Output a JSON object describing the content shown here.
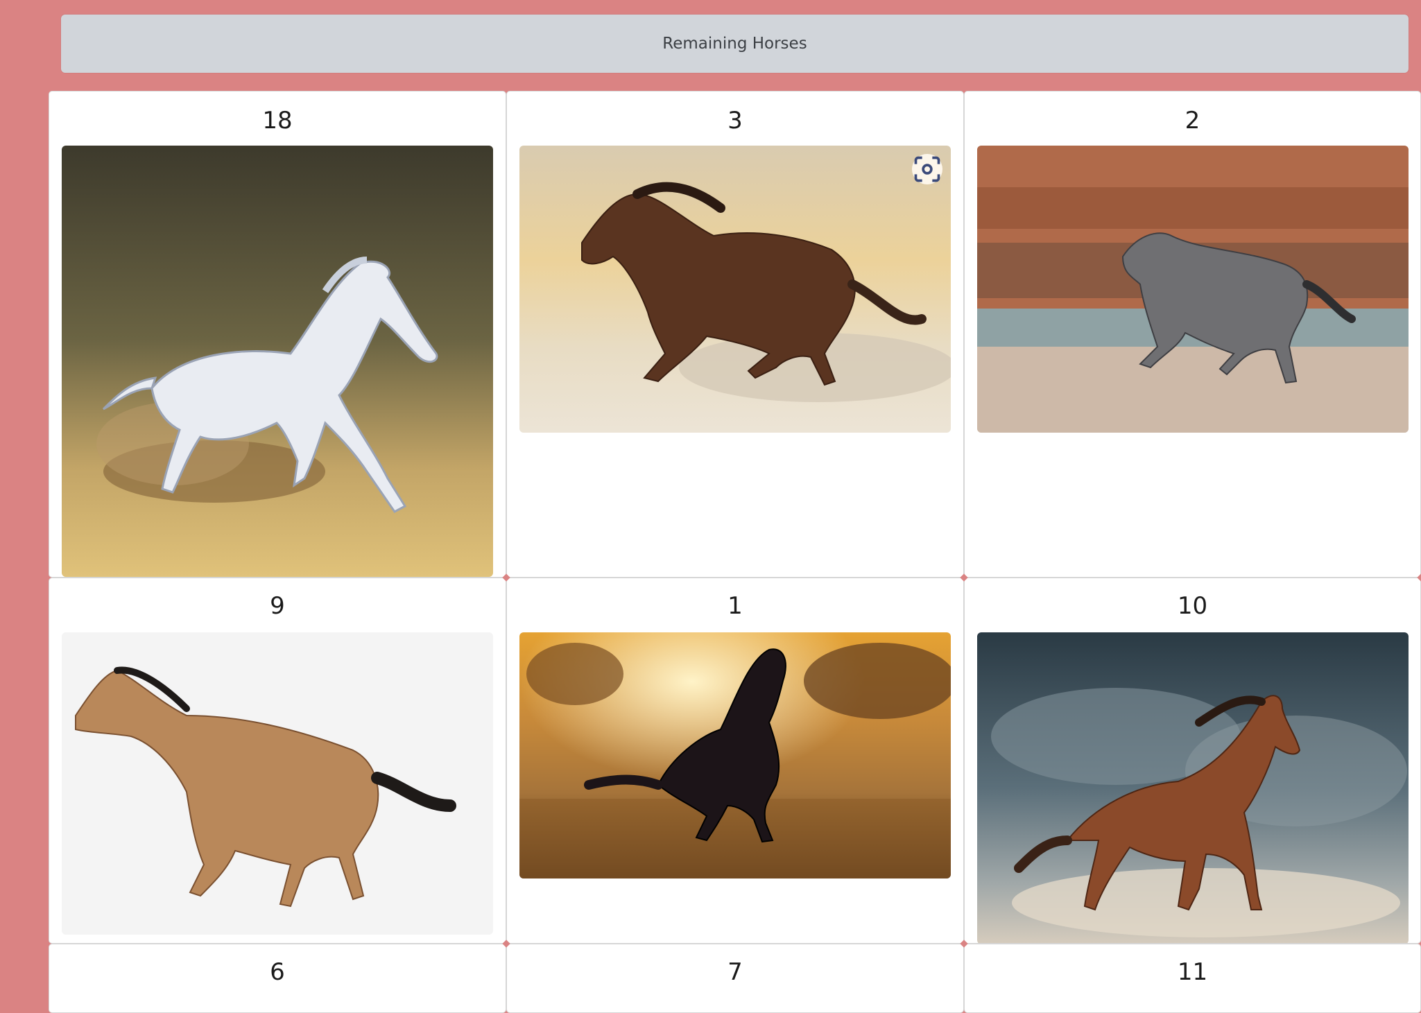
{
  "header": {
    "button_label": "Remaining Horses"
  },
  "cards": [
    {
      "number": "18",
      "image": "white-horse-galloping-painting"
    },
    {
      "number": "3",
      "image": "bay-horse-galloping-sand"
    },
    {
      "number": "2",
      "image": "grey-horse-beach-cliffs"
    },
    {
      "number": "9",
      "image": "buckskin-horse-white-background"
    },
    {
      "number": "1",
      "image": "black-horse-sunset-field"
    },
    {
      "number": "10",
      "image": "chestnut-horse-stormy-sky"
    },
    {
      "number": "6"
    },
    {
      "number": "7"
    },
    {
      "number": "11"
    }
  ],
  "icons": {
    "visual_search": "lens-icon"
  },
  "colors": {
    "page_background": "#da8383",
    "header_button": "#d1d5da",
    "card_background": "#ffffff"
  }
}
